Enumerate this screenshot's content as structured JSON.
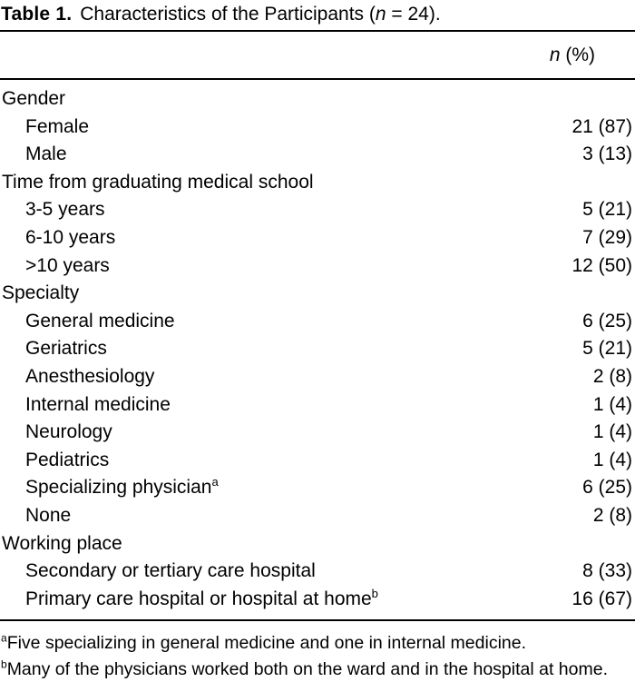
{
  "page": {
    "background": "#ffffff",
    "text_color": "#000000",
    "rule_color": "#000000"
  },
  "table": {
    "caption": {
      "label": "Table 1.",
      "text_before_n": "Characteristics of the Participants (",
      "n_italic": "n",
      "text_after_n": " = 24)."
    },
    "header": {
      "n_italic": "n",
      "rest": " (%)"
    },
    "rows": [
      {
        "label": "Gender",
        "value": "",
        "level": 0,
        "sup": ""
      },
      {
        "label": "Female",
        "value": "21 (87)",
        "level": 1,
        "sup": ""
      },
      {
        "label": "Male",
        "value": "3 (13)",
        "level": 1,
        "sup": ""
      },
      {
        "label": "Time from graduating medical school",
        "value": "",
        "level": 0,
        "sup": ""
      },
      {
        "label": "3-5 years",
        "value": "5 (21)",
        "level": 1,
        "sup": ""
      },
      {
        "label": "6-10 years",
        "value": "7 (29)",
        "level": 1,
        "sup": ""
      },
      {
        "label": ">10 years",
        "value": "12 (50)",
        "level": 1,
        "sup": ""
      },
      {
        "label": "Specialty",
        "value": "",
        "level": 0,
        "sup": ""
      },
      {
        "label": "General medicine",
        "value": "6 (25)",
        "level": 1,
        "sup": ""
      },
      {
        "label": "Geriatrics",
        "value": "5 (21)",
        "level": 1,
        "sup": ""
      },
      {
        "label": "Anesthesiology",
        "value": "2 (8)",
        "level": 1,
        "sup": ""
      },
      {
        "label": "Internal medicine",
        "value": "1 (4)",
        "level": 1,
        "sup": ""
      },
      {
        "label": "Neurology",
        "value": "1 (4)",
        "level": 1,
        "sup": ""
      },
      {
        "label": "Pediatrics",
        "value": "1 (4)",
        "level": 1,
        "sup": ""
      },
      {
        "label": "Specializing physician",
        "value": "6 (25)",
        "level": 1,
        "sup": "a"
      },
      {
        "label": "None",
        "value": "2 (8)",
        "level": 1,
        "sup": ""
      },
      {
        "label": "Working place",
        "value": "",
        "level": 0,
        "sup": ""
      },
      {
        "label": "Secondary or tertiary care hospital",
        "value": "8 (33)",
        "level": 1,
        "sup": ""
      },
      {
        "label": "Primary care hospital or hospital at home",
        "value": "16 (67)",
        "level": 1,
        "sup": "b"
      }
    ],
    "footnotes": [
      {
        "marker": "a",
        "text": "Five specializing in general medicine and one in internal medicine."
      },
      {
        "marker": "b",
        "text": "Many of the physicians worked both on the ward and in the hospital at home."
      }
    ]
  }
}
